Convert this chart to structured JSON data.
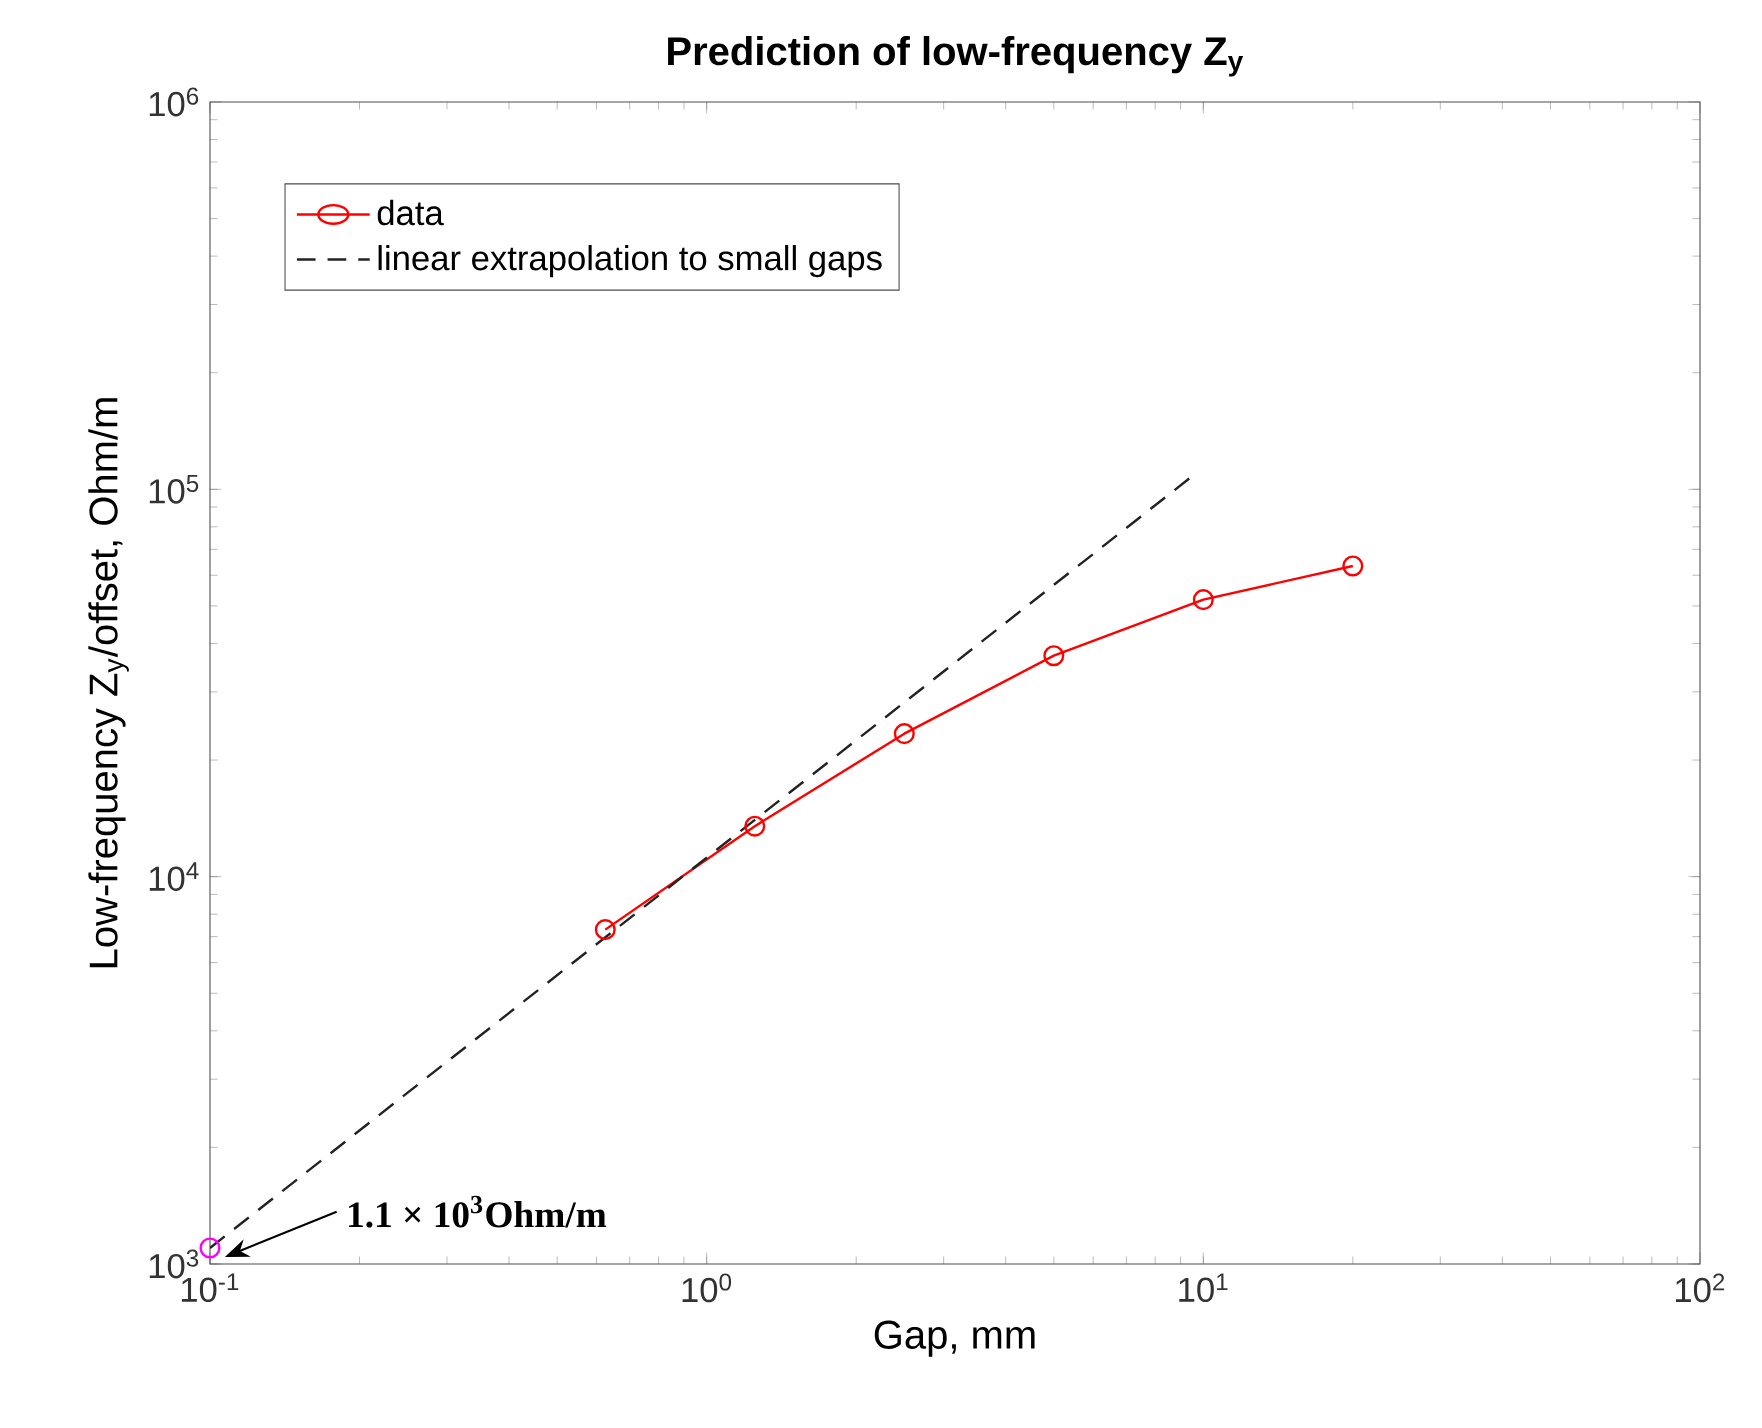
{
  "chart_data": {
    "type": "line",
    "title": "Prediction of low-frequency Z$_{y}$",
    "xlabel": "Gap, mm",
    "ylabel": "Low-frequency Z$_{y}$/offset, Ohm/m",
    "log": "xy",
    "grid": false,
    "legend": "top left",
    "xlim": [
      0.1,
      100
    ],
    "ylim": [
      1000,
      1000000
    ],
    "xticks": [
      {
        "value": 0.1,
        "label": "10$^{-1}$"
      },
      {
        "value": 1,
        "label": "10$^{0}$"
      },
      {
        "value": 10,
        "label": "10$^{1}$"
      },
      {
        "value": 100,
        "label": "10$^{2}$"
      }
    ],
    "yticks": [
      {
        "value": 1000,
        "label": "10$^{3}$"
      },
      {
        "value": 10000,
        "label": "10$^{4}$"
      },
      {
        "value": 100000,
        "label": "10$^{5}$"
      },
      {
        "value": 1000000,
        "label": "10$^{6}$"
      }
    ],
    "series": [
      {
        "name": "data",
        "color": "#ff0000",
        "marker": "circle",
        "line_style": "solid",
        "x": [
          0.625,
          1.25,
          2.5,
          5,
          10,
          20
        ],
        "values": [
          7300,
          13500,
          23400,
          37200,
          51900,
          63400
        ]
      },
      {
        "name": "linear extrapolation to small gaps",
        "color": "#222222",
        "marker": "none",
        "line_style": "dashed",
        "x": [
          0.1,
          9.4
        ],
        "values": [
          1100,
          107000
        ]
      },
      {
        "type": "scatter",
        "color": "#ff00ff",
        "marker": "circle",
        "x": [
          0.1
        ],
        "values": [
          1100
        ]
      }
    ],
    "annotations": [
      "1.1 × 10$^{3}$Ohm/m"
    ]
  }
}
